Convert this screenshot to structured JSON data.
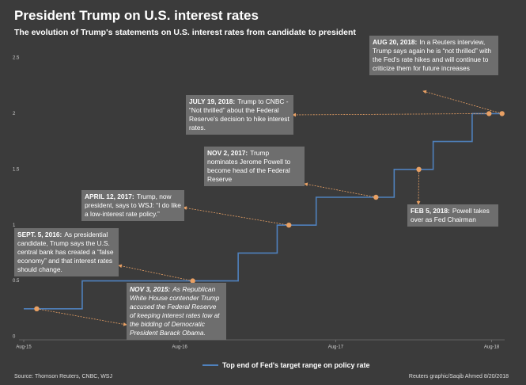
{
  "chart_data": {
    "type": "step",
    "title": "President Trump on U.S. interest rates",
    "subtitle": "The evolution of Trump's statements on U.S. interest rates from candidate to president",
    "x": [
      0,
      4.5,
      16.5,
      19.5,
      22.5,
      28.5,
      31.5,
      34.5,
      36.8
    ],
    "series": [
      {
        "name": "Top end of Fed's target range on policy rate",
        "color": "#4f81bd",
        "values": [
          0.25,
          0.5,
          0.75,
          1,
          1.25,
          1.5,
          1.75,
          2,
          2
        ]
      }
    ],
    "xlim": [
      0,
      37
    ],
    "ylim": [
      0,
      2.5
    ],
    "xticks": [
      {
        "value": 0,
        "label": "Aug-15"
      },
      {
        "value": 12,
        "label": "Aug-16"
      },
      {
        "value": 24,
        "label": "Aug-17"
      },
      {
        "value": 36,
        "label": "Aug-18"
      }
    ],
    "yticks": [
      0,
      0.5,
      1,
      1.5,
      2,
      2.5
    ],
    "annotation_color": "#e8a064",
    "annotations": [
      {
        "date": "NOV 3, 2015:",
        "text": "As Republican White House contender Trump accused the Federal Reserve of keeping interest rates low at the bidding of Democratic President Barack Obama.",
        "x": 1,
        "y": 0.25
      },
      {
        "date": "SEPT. 5, 2016:",
        "text": "As presidential candidate, Trump says the U.S. central bank has created a “false economy” and that interest rates should change.",
        "x": 13,
        "y": 0.5
      },
      {
        "date": "APRIL 12, 2017:",
        "text": "Trump, now president, says to WSJ: “I do like a low-interest rate policy.”",
        "x": 20.4,
        "y": 1
      },
      {
        "date": "NOV 2, 2017:",
        "text": "Trump nominates Jerome Powell to become head of the Federal Reserve",
        "x": 27.1,
        "y": 1.25
      },
      {
        "date": "JULY 19, 2018:",
        "text": "Trump to CNBC - “Not thrilled” about the Federal Reserve's decision to hike interest rates.",
        "x": 35.8,
        "y": 2
      },
      {
        "date": "AUG 20, 2018:",
        "text": "In a Reuters interview, Trump says again he is “not thrilled” with the Fed's rate hikes and will continue to criticize them for future increases",
        "x": 36.8,
        "y": 2
      },
      {
        "date": "FEB 5, 2018:",
        "text": "Powell takes over as Fed Chairman",
        "x": 30.4,
        "y": 1.5
      }
    ],
    "source": "Source: Thomson Reuters, CNBC, WSJ",
    "credit": "Reuters graphic/Saqib Ahmed 8/20/2018"
  }
}
